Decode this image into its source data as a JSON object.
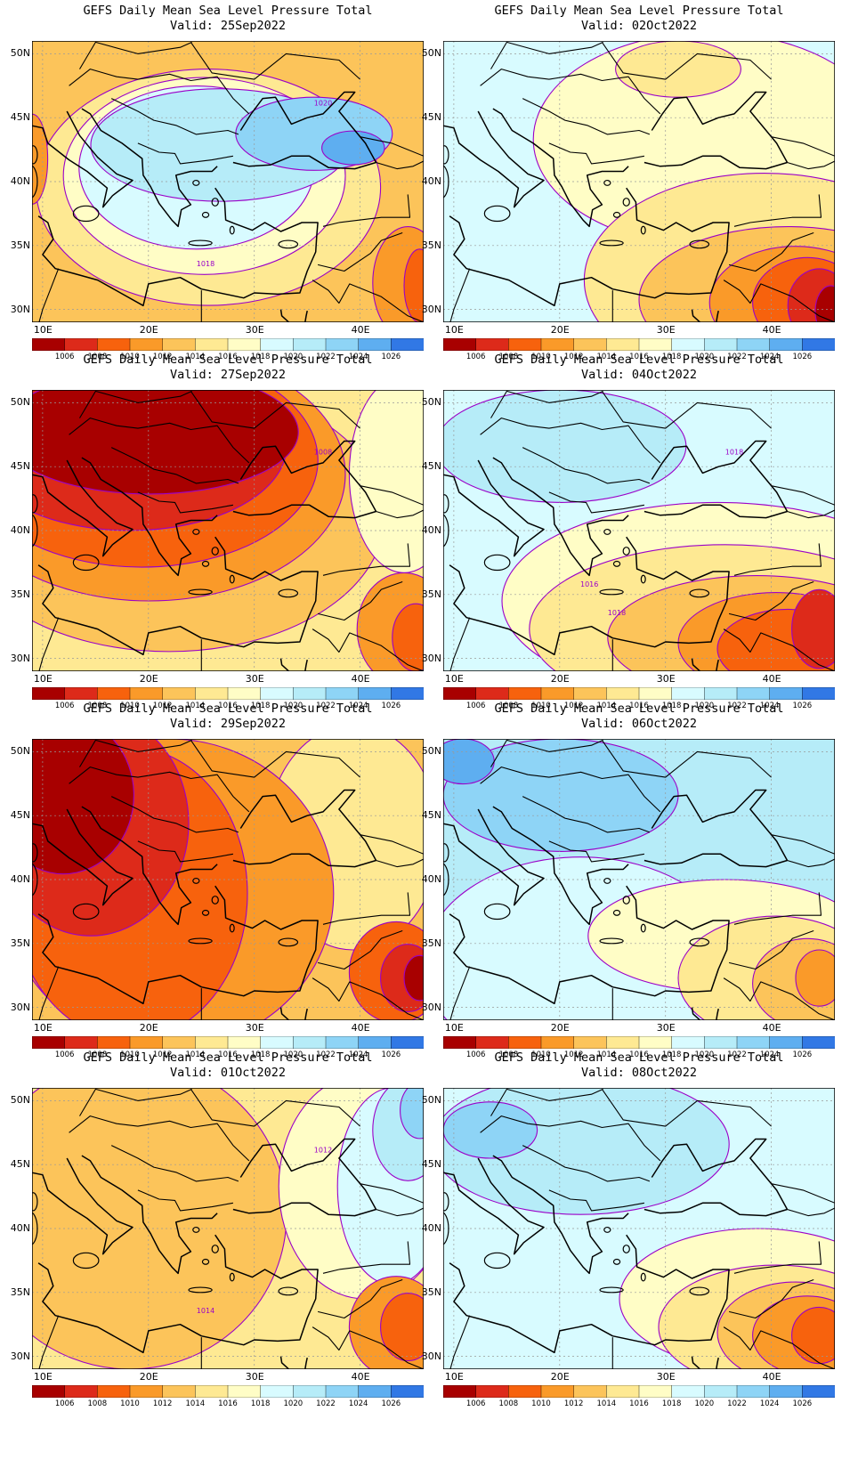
{
  "title_line": "GEFS Daily Mean Sea Level Pressure Total",
  "lat_labels": [
    "50N",
    "45N",
    "40N",
    "35N",
    "30N"
  ],
  "lon_labels": [
    "10E",
    "20E",
    "30E",
    "40E"
  ],
  "colorbar": {
    "levels": [
      "1006",
      "1008",
      "1010",
      "1012",
      "1014",
      "1016",
      "1018",
      "1020",
      "1022",
      "1024",
      "1026"
    ],
    "colors": [
      "#a80000",
      "#dd2a1a",
      "#f7620d",
      "#fa9a29",
      "#fcc45a",
      "#fee993",
      "#fffdc6",
      "#d8fbff",
      "#b6ecf8",
      "#8ed4f6",
      "#5eaef0",
      "#3178e5"
    ]
  },
  "panels": [
    {
      "valid": "Valid: 25Sep2022",
      "contour_labels": [
        "1020",
        "1018"
      ],
      "background": "#fcc45a",
      "blobs": [
        {
          "color": "#fee993",
          "cx": 45,
          "cy": 52,
          "rx": 44,
          "ry": 42
        },
        {
          "color": "#fffdc6",
          "cx": 44,
          "cy": 48,
          "rx": 36,
          "ry": 35
        },
        {
          "color": "#d8fbff",
          "cx": 42,
          "cy": 45,
          "rx": 30,
          "ry": 29
        },
        {
          "color": "#b6ecf8",
          "cx": 48,
          "cy": 37,
          "rx": 33,
          "ry": 20
        },
        {
          "color": "#8ed4f6",
          "cx": 72,
          "cy": 33,
          "rx": 20,
          "ry": 13
        },
        {
          "color": "#5eaef0",
          "cx": 82,
          "cy": 38,
          "rx": 8,
          "ry": 6
        },
        {
          "color": "#fa9a29",
          "cx": 96,
          "cy": 86,
          "rx": 9,
          "ry": 20
        },
        {
          "color": "#f7620d",
          "cx": 99,
          "cy": 87,
          "rx": 4,
          "ry": 13
        },
        {
          "color": "#fa9a29",
          "cx": 0,
          "cy": 42,
          "rx": 4,
          "ry": 16
        }
      ]
    },
    {
      "valid": "Valid: 02Oct2022",
      "contour_labels": [],
      "background": "#d8fbff",
      "blobs": [
        {
          "color": "#fffdc6",
          "cx": 68,
          "cy": 35,
          "rx": 45,
          "ry": 38
        },
        {
          "color": "#fee993",
          "cx": 82,
          "cy": 85,
          "rx": 46,
          "ry": 38
        },
        {
          "color": "#fcc45a",
          "cx": 88,
          "cy": 92,
          "rx": 38,
          "ry": 26
        },
        {
          "color": "#fa9a29",
          "cx": 90,
          "cy": 93,
          "rx": 22,
          "ry": 20
        },
        {
          "color": "#f7620d",
          "cx": 93,
          "cy": 93,
          "rx": 14,
          "ry": 16
        },
        {
          "color": "#dd2a1a",
          "cx": 96,
          "cy": 94,
          "rx": 8,
          "ry": 13
        },
        {
          "color": "#a80000",
          "cx": 99,
          "cy": 96,
          "rx": 4,
          "ry": 9
        },
        {
          "color": "#fee993",
          "cx": 60,
          "cy": 10,
          "rx": 16,
          "ry": 10
        }
      ]
    },
    {
      "valid": "Valid: 27Sep2022",
      "contour_labels": [
        "1008"
      ],
      "background": "#fee993",
      "blobs": [
        {
          "color": "#fcc45a",
          "cx": 35,
          "cy": 45,
          "rx": 55,
          "ry": 48
        },
        {
          "color": "#fa9a29",
          "cx": 30,
          "cy": 30,
          "rx": 50,
          "ry": 45
        },
        {
          "color": "#f7620d",
          "cx": 28,
          "cy": 25,
          "rx": 45,
          "ry": 38
        },
        {
          "color": "#dd2a1a",
          "cx": 25,
          "cy": 20,
          "rx": 40,
          "ry": 30
        },
        {
          "color": "#a80000",
          "cx": 30,
          "cy": 15,
          "rx": 38,
          "ry": 22
        },
        {
          "color": "#fffdc6",
          "cx": 95,
          "cy": 30,
          "rx": 14,
          "ry": 35
        },
        {
          "color": "#fa9a29",
          "cx": 95,
          "cy": 85,
          "rx": 12,
          "ry": 20
        },
        {
          "color": "#f7620d",
          "cx": 98,
          "cy": 88,
          "rx": 6,
          "ry": 12
        }
      ]
    },
    {
      "valid": "Valid: 04Oct2022",
      "contour_labels": [
        "1018",
        "1018",
        "1016"
      ],
      "background": "#d8fbff",
      "blobs": [
        {
          "color": "#b6ecf8",
          "cx": 30,
          "cy": 20,
          "rx": 32,
          "ry": 20
        },
        {
          "color": "#fffdc6",
          "cx": 70,
          "cy": 75,
          "rx": 55,
          "ry": 35
        },
        {
          "color": "#fee993",
          "cx": 72,
          "cy": 85,
          "rx": 50,
          "ry": 30
        },
        {
          "color": "#fcc45a",
          "cx": 80,
          "cy": 88,
          "rx": 38,
          "ry": 22
        },
        {
          "color": "#fa9a29",
          "cx": 85,
          "cy": 90,
          "rx": 25,
          "ry": 18
        },
        {
          "color": "#f7620d",
          "cx": 88,
          "cy": 92,
          "rx": 18,
          "ry": 14
        },
        {
          "color": "#dd2a1a",
          "cx": 96,
          "cy": 85,
          "rx": 7,
          "ry": 14
        }
      ]
    },
    {
      "valid": "Valid: 29Sep2022",
      "contour_labels": [],
      "background": "#fcc45a",
      "blobs": [
        {
          "color": "#fee993",
          "cx": 82,
          "cy": 35,
          "rx": 22,
          "ry": 40
        },
        {
          "color": "#fa9a29",
          "cx": 35,
          "cy": 55,
          "rx": 42,
          "ry": 55
        },
        {
          "color": "#f7620d",
          "cx": 25,
          "cy": 55,
          "rx": 30,
          "ry": 52
        },
        {
          "color": "#dd2a1a",
          "cx": 15,
          "cy": 30,
          "rx": 25,
          "ry": 40
        },
        {
          "color": "#a80000",
          "cx": 8,
          "cy": 20,
          "rx": 18,
          "ry": 28
        },
        {
          "color": "#f7620d",
          "cx": 93,
          "cy": 83,
          "rx": 12,
          "ry": 18
        },
        {
          "color": "#dd2a1a",
          "cx": 96,
          "cy": 85,
          "rx": 7,
          "ry": 12
        },
        {
          "color": "#a80000",
          "cx": 99,
          "cy": 85,
          "rx": 4,
          "ry": 8
        }
      ]
    },
    {
      "valid": "Valid: 06Oct2022",
      "contour_labels": [],
      "background": "#b6ecf8",
      "blobs": [
        {
          "color": "#8ed4f6",
          "cx": 30,
          "cy": 20,
          "rx": 30,
          "ry": 20
        },
        {
          "color": "#5eaef0",
          "cx": 5,
          "cy": 8,
          "rx": 8,
          "ry": 8
        },
        {
          "color": "#d8fbff",
          "cx": 35,
          "cy": 80,
          "rx": 40,
          "ry": 38
        },
        {
          "color": "#fffdc6",
          "cx": 72,
          "cy": 70,
          "rx": 35,
          "ry": 20
        },
        {
          "color": "#fee993",
          "cx": 85,
          "cy": 85,
          "rx": 25,
          "ry": 22
        },
        {
          "color": "#fcc45a",
          "cx": 93,
          "cy": 87,
          "rx": 14,
          "ry": 16
        },
        {
          "color": "#fa9a29",
          "cx": 96,
          "cy": 85,
          "rx": 6,
          "ry": 10
        }
      ]
    },
    {
      "valid": "Valid: 01Oct2022",
      "contour_labels": [
        "1012",
        "1014"
      ],
      "background": "#fee993",
      "blobs": [
        {
          "color": "#fcc45a",
          "cx": 25,
          "cy": 45,
          "rx": 40,
          "ry": 55
        },
        {
          "color": "#fffdc6",
          "cx": 85,
          "cy": 35,
          "rx": 22,
          "ry": 40
        },
        {
          "color": "#d8fbff",
          "cx": 92,
          "cy": 35,
          "rx": 14,
          "ry": 35
        },
        {
          "color": "#b6ecf8",
          "cx": 96,
          "cy": 15,
          "rx": 9,
          "ry": 18
        },
        {
          "color": "#8ed4f6",
          "cx": 99,
          "cy": 8,
          "rx": 5,
          "ry": 10
        },
        {
          "color": "#fa9a29",
          "cx": 93,
          "cy": 85,
          "rx": 12,
          "ry": 18
        },
        {
          "color": "#f7620d",
          "cx": 96,
          "cy": 85,
          "rx": 7,
          "ry": 12
        }
      ]
    },
    {
      "valid": "Valid: 08Oct2022",
      "contour_labels": [],
      "background": "#d8fbff",
      "blobs": [
        {
          "color": "#b6ecf8",
          "cx": 35,
          "cy": 20,
          "rx": 38,
          "ry": 25
        },
        {
          "color": "#8ed4f6",
          "cx": 12,
          "cy": 15,
          "rx": 12,
          "ry": 10
        },
        {
          "color": "#fffdc6",
          "cx": 80,
          "cy": 75,
          "rx": 35,
          "ry": 25
        },
        {
          "color": "#fee993",
          "cx": 85,
          "cy": 85,
          "rx": 30,
          "ry": 22
        },
        {
          "color": "#fcc45a",
          "cx": 90,
          "cy": 87,
          "rx": 20,
          "ry": 18
        },
        {
          "color": "#fa9a29",
          "cx": 93,
          "cy": 88,
          "rx": 14,
          "ry": 14
        },
        {
          "color": "#f7620d",
          "cx": 96,
          "cy": 88,
          "rx": 7,
          "ry": 10
        }
      ]
    }
  ]
}
